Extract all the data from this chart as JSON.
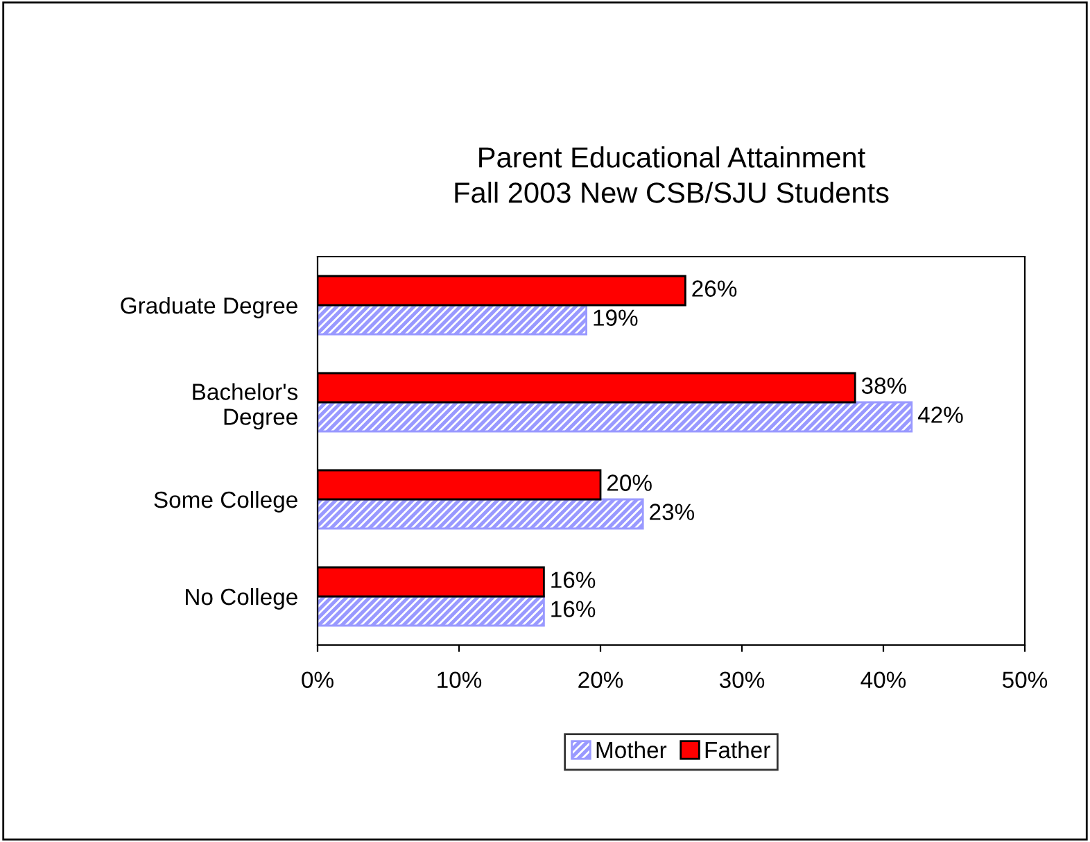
{
  "chart_data": {
    "type": "bar",
    "orientation": "horizontal",
    "title": "Parent Educational Attainment\nFall 2003 New CSB/SJU Students",
    "categories": [
      "Graduate Degree",
      "Bachelor's\nDegree",
      "Some College",
      "No College"
    ],
    "series": [
      {
        "name": "Mother",
        "color": "#9999ff",
        "values": [
          19,
          42,
          23,
          16
        ],
        "value_labels": [
          "19%",
          "42%",
          "23%",
          "16%"
        ]
      },
      {
        "name": "Father",
        "color": "#ff0000",
        "values": [
          26,
          38,
          20,
          16
        ],
        "value_labels": [
          "26%",
          "38%",
          "20%",
          "16%"
        ]
      }
    ],
    "xlim": [
      0,
      50
    ],
    "xticks": [
      {
        "value": 0,
        "label": "0%"
      },
      {
        "value": 10,
        "label": "10%"
      },
      {
        "value": 20,
        "label": "20%"
      },
      {
        "value": 30,
        "label": "30%"
      },
      {
        "value": 40,
        "label": "40%"
      },
      {
        "value": 50,
        "label": "50%"
      }
    ],
    "grid": false,
    "legend": "bottom"
  }
}
